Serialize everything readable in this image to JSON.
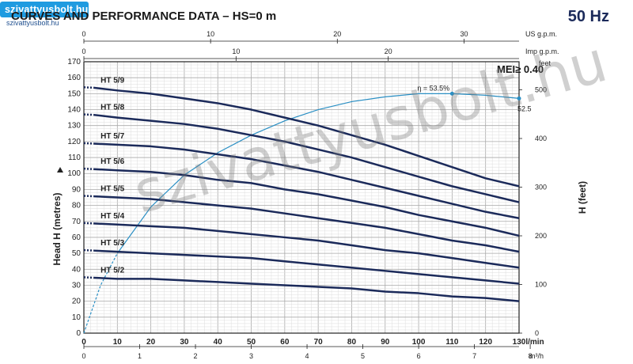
{
  "header": {
    "logo_text": "szivattyusbolt.hu",
    "logo_url": "szivattyusbolt.hu",
    "title": "CURVES AND PERFORMANCE DATA  –  HS=0 m",
    "frequency": "50 Hz",
    "mei": "MEI≥ 0.40",
    "watermark": "szivattyusbolt.hu"
  },
  "colors": {
    "curve": "#1b2a5a",
    "efficiency": "#2a8fc4",
    "grid": "#bfbfbf",
    "axis": "#222222",
    "logo_bg": "#1f9be0"
  },
  "chart_data": {
    "type": "line",
    "xlabel": "l/min",
    "ylabel": "Head H (metres)",
    "y2label": "H (feet)",
    "xlim": [
      0,
      130
    ],
    "ylim": [
      0,
      170
    ],
    "x_ticks": [
      0,
      10,
      20,
      30,
      40,
      50,
      60,
      70,
      80,
      90,
      100,
      110,
      120,
      130
    ],
    "y_ticks": [
      0,
      10,
      20,
      30,
      40,
      50,
      60,
      70,
      80,
      90,
      100,
      110,
      120,
      130,
      140,
      150,
      160,
      170
    ],
    "feet_unit": "feet",
    "feet_ticks": [
      0,
      100,
      200,
      300,
      400,
      500
    ],
    "m3h_unit": "m³/h",
    "m3h_ticks": [
      0,
      1,
      2,
      3,
      4,
      5,
      6,
      7,
      8
    ],
    "us_gpm_unit": "US g.p.m.",
    "us_gpm_ticks": [
      0,
      10,
      20,
      30
    ],
    "imp_gpm_unit": "Imp g.p.m.",
    "imp_gpm_ticks": [
      0,
      10,
      20
    ],
    "series": [
      {
        "name": "HT 5/9",
        "x": [
          0,
          10,
          20,
          30,
          40,
          50,
          60,
          70,
          80,
          90,
          100,
          110,
          120,
          130
        ],
        "values": [
          154,
          152,
          150,
          147,
          144,
          140,
          135,
          130,
          124,
          118,
          111,
          104,
          97,
          92
        ]
      },
      {
        "name": "HT 5/8",
        "x": [
          0,
          10,
          20,
          30,
          40,
          50,
          60,
          70,
          80,
          90,
          100,
          110,
          120,
          130
        ],
        "values": [
          137,
          135,
          133,
          131,
          128,
          124,
          120,
          115,
          110,
          104,
          98,
          92,
          87,
          82
        ]
      },
      {
        "name": "HT 5/7",
        "x": [
          0,
          10,
          20,
          30,
          40,
          50,
          60,
          70,
          80,
          90,
          100,
          110,
          120,
          130
        ],
        "values": [
          119,
          118,
          117,
          115,
          112,
          109,
          105,
          101,
          96,
          91,
          86,
          81,
          76,
          72
        ]
      },
      {
        "name": "HT 5/6",
        "x": [
          0,
          10,
          20,
          30,
          40,
          50,
          60,
          70,
          80,
          90,
          100,
          110,
          120,
          130
        ],
        "values": [
          103,
          102,
          101,
          99,
          96,
          94,
          90,
          87,
          83,
          79,
          74,
          70,
          66,
          61
        ]
      },
      {
        "name": "HT 5/5",
        "x": [
          0,
          10,
          20,
          30,
          40,
          50,
          60,
          70,
          80,
          90,
          100,
          110,
          120,
          130
        ],
        "values": [
          86,
          85,
          84,
          82,
          80,
          78,
          75,
          72,
          69,
          66,
          62,
          58,
          55,
          51
        ]
      },
      {
        "name": "HT 5/4",
        "x": [
          0,
          10,
          20,
          30,
          40,
          50,
          60,
          70,
          80,
          90,
          100,
          110,
          120,
          130
        ],
        "values": [
          69,
          68,
          67,
          66,
          64,
          62,
          60,
          58,
          55,
          52,
          50,
          47,
          44,
          41
        ]
      },
      {
        "name": "HT 5/3",
        "x": [
          0,
          10,
          20,
          30,
          40,
          50,
          60,
          70,
          80,
          90,
          100,
          110,
          120,
          130
        ],
        "values": [
          52,
          51,
          50,
          49,
          48,
          47,
          45,
          43,
          41,
          39,
          37,
          35,
          33,
          31
        ]
      },
      {
        "name": "HT 5/2",
        "x": [
          0,
          10,
          20,
          30,
          40,
          50,
          60,
          70,
          80,
          90,
          100,
          110,
          120,
          130
        ],
        "values": [
          35,
          34,
          34,
          33,
          32,
          31,
          30,
          29,
          28,
          26,
          25,
          23,
          22,
          20
        ]
      }
    ],
    "efficiency": {
      "x": [
        0,
        5,
        10,
        20,
        30,
        40,
        50,
        60,
        70,
        80,
        90,
        100,
        110,
        120,
        130
      ],
      "values": [
        0,
        30,
        50,
        79,
        99,
        113,
        124,
        133,
        140,
        145,
        148,
        150,
        150,
        149,
        147
      ],
      "peak_label": "η = 53.5%",
      "peak_x": 110,
      "end_label": "52.5",
      "end_x": 130
    }
  }
}
